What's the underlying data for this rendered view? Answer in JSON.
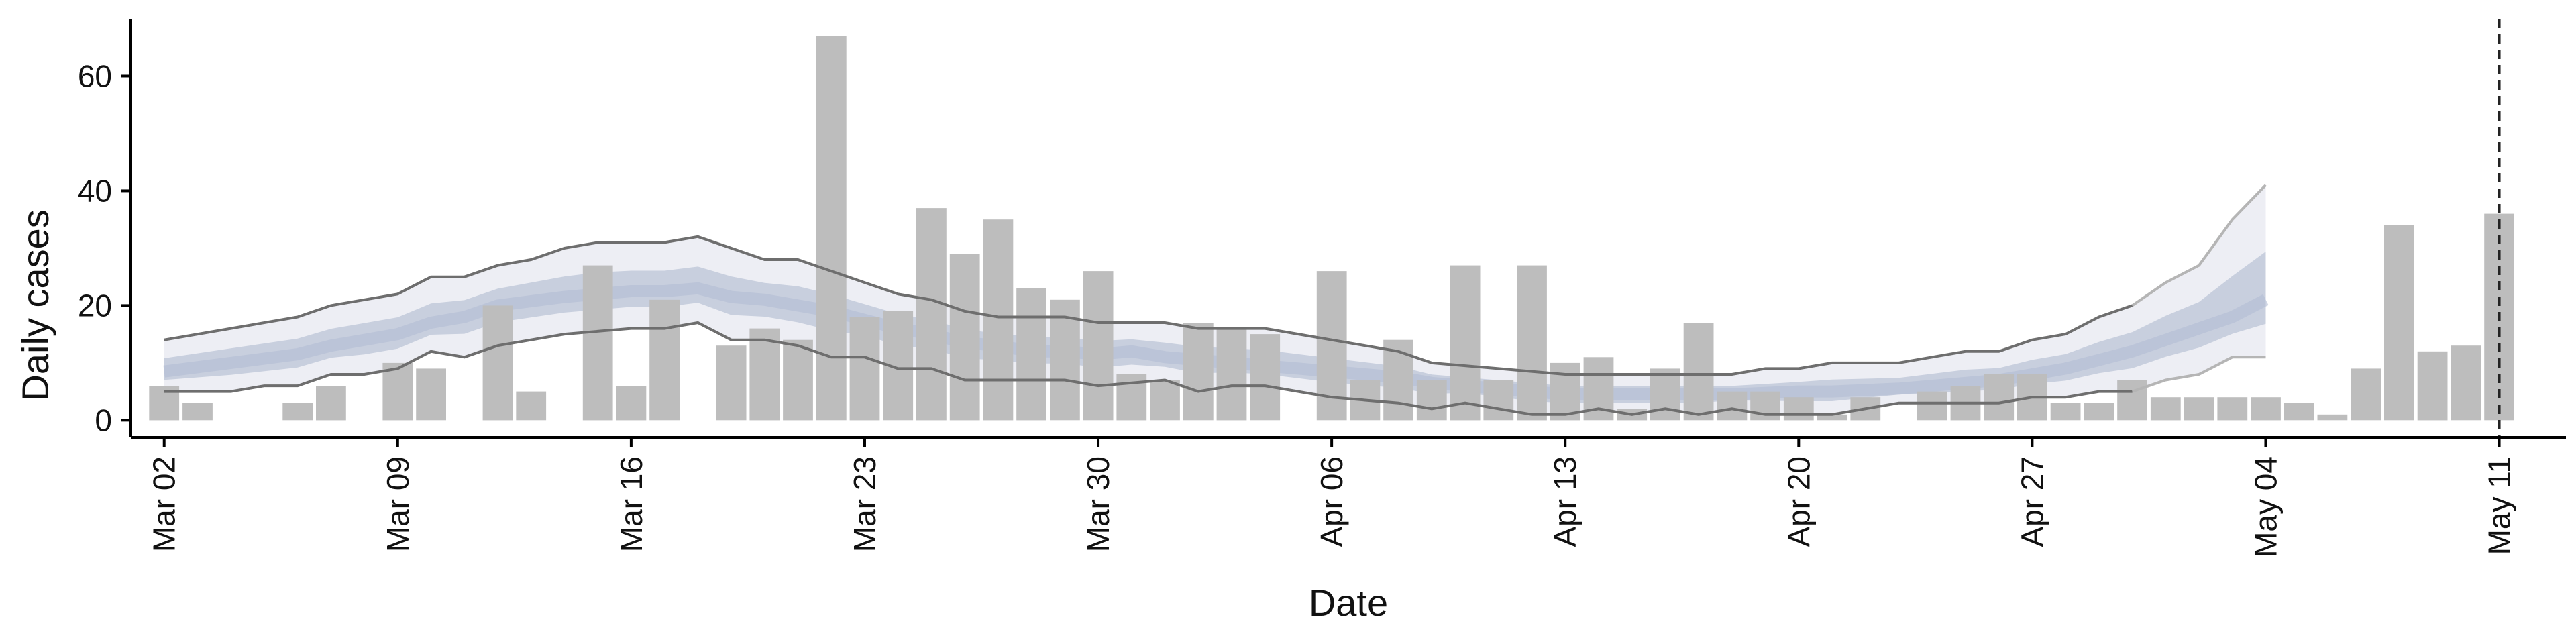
{
  "chart_data": {
    "type": "bar",
    "title": "",
    "xlabel": "Date",
    "ylabel": "Daily cases",
    "start_date": "2020-03-01",
    "end_date": "2020-05-13",
    "ylim": [
      -3,
      70
    ],
    "y_ticks": [
      0,
      20,
      40,
      60
    ],
    "x_ticks": [
      {
        "date": "2020-03-02",
        "label": "Mar 02"
      },
      {
        "date": "2020-03-09",
        "label": "Mar 09"
      },
      {
        "date": "2020-03-16",
        "label": "Mar 16"
      },
      {
        "date": "2020-03-23",
        "label": "Mar 23"
      },
      {
        "date": "2020-03-30",
        "label": "Mar 30"
      },
      {
        "date": "2020-04-06",
        "label": "Apr 06"
      },
      {
        "date": "2020-04-13",
        "label": "Apr 13"
      },
      {
        "date": "2020-04-20",
        "label": "Apr 20"
      },
      {
        "date": "2020-04-27",
        "label": "Apr 27"
      },
      {
        "date": "2020-05-04",
        "label": "May 04"
      },
      {
        "date": "2020-05-11",
        "label": "May 11"
      }
    ],
    "vline_date": "2020-05-11",
    "grid": false,
    "colors": {
      "bars": "#bdbdbd",
      "band_outer": "#edeef4",
      "band_inner": "#c8cfde",
      "median": "#b3bdd4",
      "bound_lines": "#6e6e6e",
      "forecast_bound": "#b5b5b5",
      "vline": "#222222"
    },
    "series": [
      {
        "name": "Reported daily cases",
        "points": [
          [
            "2020-03-02",
            6
          ],
          [
            "2020-03-03",
            3
          ],
          [
            "2020-03-06",
            3
          ],
          [
            "2020-03-07",
            6
          ],
          [
            "2020-03-09",
            10
          ],
          [
            "2020-03-10",
            9
          ],
          [
            "2020-03-12",
            20
          ],
          [
            "2020-03-13",
            5
          ],
          [
            "2020-03-15",
            27
          ],
          [
            "2020-03-16",
            6
          ],
          [
            "2020-03-17",
            21
          ],
          [
            "2020-03-19",
            13
          ],
          [
            "2020-03-20",
            16
          ],
          [
            "2020-03-21",
            14
          ],
          [
            "2020-03-22",
            67
          ],
          [
            "2020-03-23",
            18
          ],
          [
            "2020-03-24",
            19
          ],
          [
            "2020-03-25",
            37
          ],
          [
            "2020-03-26",
            29
          ],
          [
            "2020-03-27",
            35
          ],
          [
            "2020-03-28",
            23
          ],
          [
            "2020-03-29",
            21
          ],
          [
            "2020-03-30",
            26
          ],
          [
            "2020-03-31",
            8
          ],
          [
            "2020-04-01",
            7
          ],
          [
            "2020-04-02",
            17
          ],
          [
            "2020-04-03",
            16
          ],
          [
            "2020-04-04",
            15
          ],
          [
            "2020-04-06",
            26
          ],
          [
            "2020-04-07",
            7
          ],
          [
            "2020-04-08",
            14
          ],
          [
            "2020-04-09",
            7
          ],
          [
            "2020-04-10",
            27
          ],
          [
            "2020-04-11",
            7
          ],
          [
            "2020-04-12",
            27
          ],
          [
            "2020-04-13",
            10
          ],
          [
            "2020-04-14",
            11
          ],
          [
            "2020-04-15",
            2
          ],
          [
            "2020-04-16",
            9
          ],
          [
            "2020-04-17",
            17
          ],
          [
            "2020-04-18",
            5
          ],
          [
            "2020-04-19",
            5
          ],
          [
            "2020-04-20",
            4
          ],
          [
            "2020-04-21",
            1
          ],
          [
            "2020-04-22",
            4
          ],
          [
            "2020-04-24",
            5
          ],
          [
            "2020-04-25",
            6
          ],
          [
            "2020-04-26",
            8
          ],
          [
            "2020-04-27",
            8
          ],
          [
            "2020-04-28",
            3
          ],
          [
            "2020-04-29",
            3
          ],
          [
            "2020-04-30",
            7
          ],
          [
            "2020-05-01",
            4
          ],
          [
            "2020-05-02",
            4
          ],
          [
            "2020-05-03",
            4
          ],
          [
            "2020-05-04",
            4
          ],
          [
            "2020-05-05",
            3
          ],
          [
            "2020-05-06",
            1
          ],
          [
            "2020-05-07",
            9
          ],
          [
            "2020-05-08",
            34
          ],
          [
            "2020-05-09",
            12
          ],
          [
            "2020-05-10",
            13
          ],
          [
            "2020-05-11",
            36
          ]
        ]
      },
      {
        "name": "Upper bound",
        "points": [
          [
            "2020-03-02",
            14
          ],
          [
            "2020-03-04",
            16
          ],
          [
            "2020-03-06",
            18
          ],
          [
            "2020-03-07",
            20
          ],
          [
            "2020-03-09",
            22
          ],
          [
            "2020-03-10",
            25
          ],
          [
            "2020-03-11",
            25
          ],
          [
            "2020-03-12",
            27
          ],
          [
            "2020-03-13",
            28
          ],
          [
            "2020-03-14",
            30
          ],
          [
            "2020-03-15",
            31
          ],
          [
            "2020-03-17",
            31
          ],
          [
            "2020-03-18",
            32
          ],
          [
            "2020-03-20",
            28
          ],
          [
            "2020-03-21",
            28
          ],
          [
            "2020-03-22",
            26
          ],
          [
            "2020-03-24",
            22
          ],
          [
            "2020-03-25",
            21
          ],
          [
            "2020-03-26",
            19
          ],
          [
            "2020-03-27",
            18
          ],
          [
            "2020-03-29",
            18
          ],
          [
            "2020-03-30",
            17
          ],
          [
            "2020-04-01",
            17
          ],
          [
            "2020-04-02",
            16
          ],
          [
            "2020-04-04",
            16
          ],
          [
            "2020-04-05",
            15
          ],
          [
            "2020-04-06",
            14
          ],
          [
            "2020-04-07",
            13
          ],
          [
            "2020-04-08",
            12
          ],
          [
            "2020-04-09",
            10
          ],
          [
            "2020-04-11",
            9
          ],
          [
            "2020-04-13",
            8
          ],
          [
            "2020-04-18",
            8
          ],
          [
            "2020-04-19",
            9
          ],
          [
            "2020-04-20",
            9
          ],
          [
            "2020-04-21",
            10
          ],
          [
            "2020-04-23",
            10
          ],
          [
            "2020-04-24",
            11
          ],
          [
            "2020-04-25",
            12
          ],
          [
            "2020-04-26",
            12
          ],
          [
            "2020-04-27",
            14
          ],
          [
            "2020-04-28",
            15
          ],
          [
            "2020-04-29",
            18
          ],
          [
            "2020-04-30",
            20
          ]
        ]
      },
      {
        "name": "Upper bound forecast",
        "points": [
          [
            "2020-04-30",
            20
          ],
          [
            "2020-05-01",
            24
          ],
          [
            "2020-05-02",
            27
          ],
          [
            "2020-05-03",
            35
          ],
          [
            "2020-05-04",
            41
          ]
        ]
      },
      {
        "name": "Lower bound",
        "points": [
          [
            "2020-03-02",
            5
          ],
          [
            "2020-03-04",
            5
          ],
          [
            "2020-03-05",
            6
          ],
          [
            "2020-03-06",
            6
          ],
          [
            "2020-03-07",
            8
          ],
          [
            "2020-03-08",
            8
          ],
          [
            "2020-03-09",
            9
          ],
          [
            "2020-03-10",
            12
          ],
          [
            "2020-03-11",
            11
          ],
          [
            "2020-03-12",
            13
          ],
          [
            "2020-03-14",
            15
          ],
          [
            "2020-03-16",
            16
          ],
          [
            "2020-03-17",
            16
          ],
          [
            "2020-03-18",
            17
          ],
          [
            "2020-03-19",
            14
          ],
          [
            "2020-03-20",
            14
          ],
          [
            "2020-03-21",
            13
          ],
          [
            "2020-03-22",
            11
          ],
          [
            "2020-03-23",
            11
          ],
          [
            "2020-03-24",
            9
          ],
          [
            "2020-03-25",
            9
          ],
          [
            "2020-03-26",
            7
          ],
          [
            "2020-03-29",
            7
          ],
          [
            "2020-03-30",
            6
          ],
          [
            "2020-04-01",
            7
          ],
          [
            "2020-04-02",
            5
          ],
          [
            "2020-04-03",
            6
          ],
          [
            "2020-04-04",
            6
          ],
          [
            "2020-04-06",
            4
          ],
          [
            "2020-04-08",
            3
          ],
          [
            "2020-04-09",
            2
          ],
          [
            "2020-04-10",
            3
          ],
          [
            "2020-04-11",
            2
          ],
          [
            "2020-04-12",
            1
          ],
          [
            "2020-04-13",
            1
          ],
          [
            "2020-04-14",
            2
          ],
          [
            "2020-04-15",
            1
          ],
          [
            "2020-04-16",
            2
          ],
          [
            "2020-04-17",
            1
          ],
          [
            "2020-04-18",
            2
          ],
          [
            "2020-04-19",
            1
          ],
          [
            "2020-04-20",
            1
          ],
          [
            "2020-04-21",
            1
          ],
          [
            "2020-04-23",
            3
          ],
          [
            "2020-04-25",
            3
          ],
          [
            "2020-04-26",
            3
          ],
          [
            "2020-04-27",
            4
          ],
          [
            "2020-04-28",
            4
          ],
          [
            "2020-04-29",
            5
          ],
          [
            "2020-04-30",
            5
          ]
        ]
      },
      {
        "name": "Lower bound forecast",
        "points": [
          [
            "2020-04-30",
            5
          ],
          [
            "2020-05-01",
            7
          ],
          [
            "2020-05-02",
            8
          ],
          [
            "2020-05-03",
            11
          ],
          [
            "2020-05-04",
            11
          ]
        ]
      },
      {
        "name": "Median",
        "points": [
          [
            "2020-03-02",
            8.5
          ],
          [
            "2020-03-04",
            10
          ],
          [
            "2020-03-06",
            11.5
          ],
          [
            "2020-03-07",
            13
          ],
          [
            "2020-03-08",
            14
          ],
          [
            "2020-03-09",
            15
          ],
          [
            "2020-03-10",
            17
          ],
          [
            "2020-03-11",
            18
          ],
          [
            "2020-03-12",
            20
          ],
          [
            "2020-03-14",
            21.5
          ],
          [
            "2020-03-15",
            22
          ],
          [
            "2020-03-16",
            22.5
          ],
          [
            "2020-03-17",
            22.5
          ],
          [
            "2020-03-18",
            23
          ],
          [
            "2020-03-19",
            21.5
          ],
          [
            "2020-03-20",
            21
          ],
          [
            "2020-03-21",
            20
          ],
          [
            "2020-03-22",
            19
          ],
          [
            "2020-03-23",
            17.5
          ],
          [
            "2020-03-24",
            16
          ],
          [
            "2020-03-25",
            15
          ],
          [
            "2020-03-26",
            13.5
          ],
          [
            "2020-03-27",
            13
          ],
          [
            "2020-03-28",
            12
          ],
          [
            "2020-03-29",
            12
          ],
          [
            "2020-03-30",
            11.5
          ],
          [
            "2020-03-31",
            12
          ],
          [
            "2020-04-01",
            11
          ],
          [
            "2020-04-02",
            10.5
          ],
          [
            "2020-04-03",
            10
          ],
          [
            "2020-04-04",
            9.5
          ],
          [
            "2020-04-05",
            9
          ],
          [
            "2020-04-06",
            8.5
          ],
          [
            "2020-04-07",
            8
          ],
          [
            "2020-04-08",
            7.5
          ],
          [
            "2020-04-09",
            6.5
          ],
          [
            "2020-04-10",
            6
          ],
          [
            "2020-04-11",
            5.5
          ],
          [
            "2020-04-12",
            5
          ],
          [
            "2020-04-13",
            4.5
          ],
          [
            "2020-04-15",
            4.5
          ],
          [
            "2020-04-17",
            4.5
          ],
          [
            "2020-04-18",
            4.5
          ],
          [
            "2020-04-20",
            5
          ],
          [
            "2020-04-21",
            5
          ],
          [
            "2020-04-23",
            5.5
          ],
          [
            "2020-04-25",
            6.5
          ],
          [
            "2020-04-26",
            7
          ],
          [
            "2020-04-27",
            8
          ],
          [
            "2020-04-28",
            9
          ],
          [
            "2020-04-29",
            10.5
          ],
          [
            "2020-04-30",
            12
          ],
          [
            "2020-05-01",
            14
          ],
          [
            "2020-05-02",
            16
          ],
          [
            "2020-05-03",
            18
          ],
          [
            "2020-05-04",
            21
          ]
        ]
      }
    ]
  }
}
